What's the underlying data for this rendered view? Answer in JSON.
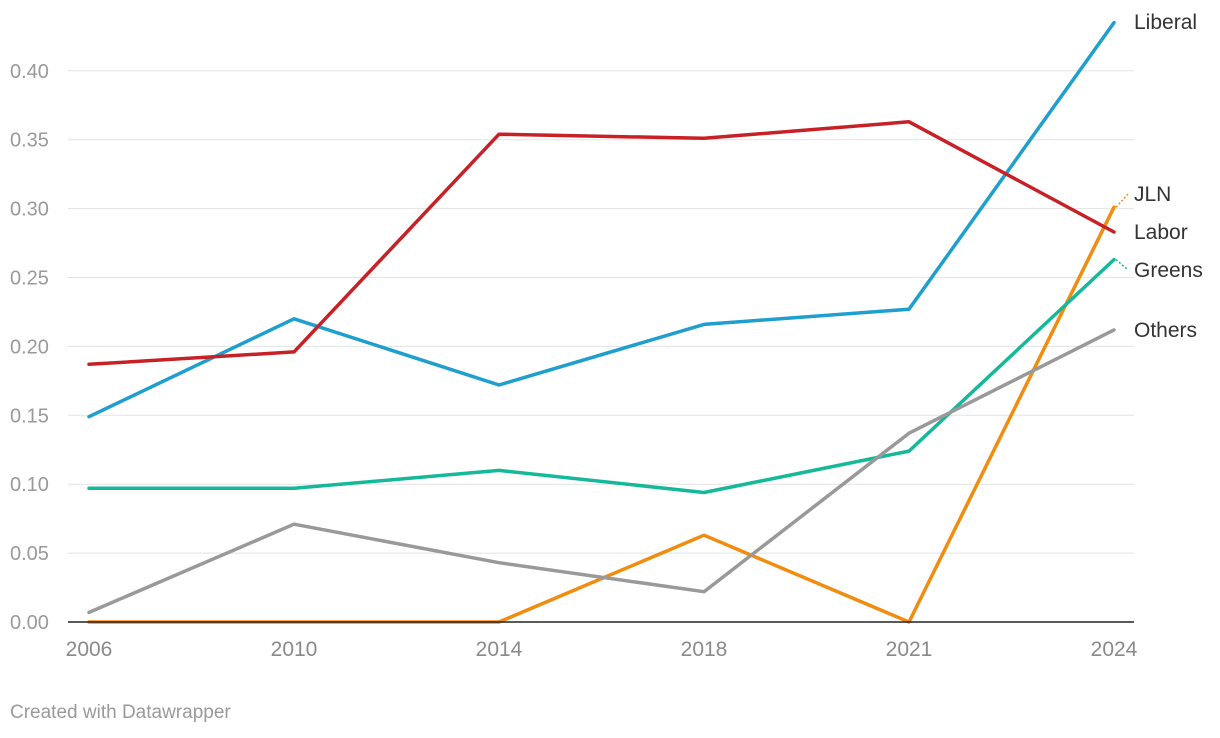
{
  "chart_data": {
    "type": "line",
    "x": [
      "2006",
      "2010",
      "2014",
      "2018",
      "2021",
      "2024"
    ],
    "ylim": [
      0,
      0.45
    ],
    "yticks": [
      0.0,
      0.05,
      0.1,
      0.15,
      0.2,
      0.25,
      0.3,
      0.35,
      0.4
    ],
    "ytick_labels": [
      "0.00",
      "0.05",
      "0.10",
      "0.15",
      "0.20",
      "0.25",
      "0.30",
      "0.35",
      "0.40"
    ],
    "grid": true,
    "legend": "direct labels at line ends (right)",
    "series": [
      {
        "name": "Liberal",
        "color": "#1f9fce",
        "values": [
          0.149,
          0.22,
          0.172,
          0.216,
          0.227,
          0.435
        ]
      },
      {
        "name": "JLN",
        "color": "#f28c0f",
        "values": [
          0.0,
          0.0,
          0.0,
          0.063,
          0.0,
          0.301
        ]
      },
      {
        "name": "Labor",
        "color": "#c72127",
        "values": [
          0.187,
          0.196,
          0.354,
          0.351,
          0.363,
          0.283
        ]
      },
      {
        "name": "Greens",
        "color": "#16b89a",
        "values": [
          0.097,
          0.097,
          0.11,
          0.094,
          0.124,
          0.263
        ]
      },
      {
        "name": "Others",
        "color": "#999999",
        "values": [
          0.007,
          0.071,
          0.043,
          0.022,
          0.137,
          0.212
        ]
      }
    ]
  },
  "credit": "Created with Datawrapper"
}
